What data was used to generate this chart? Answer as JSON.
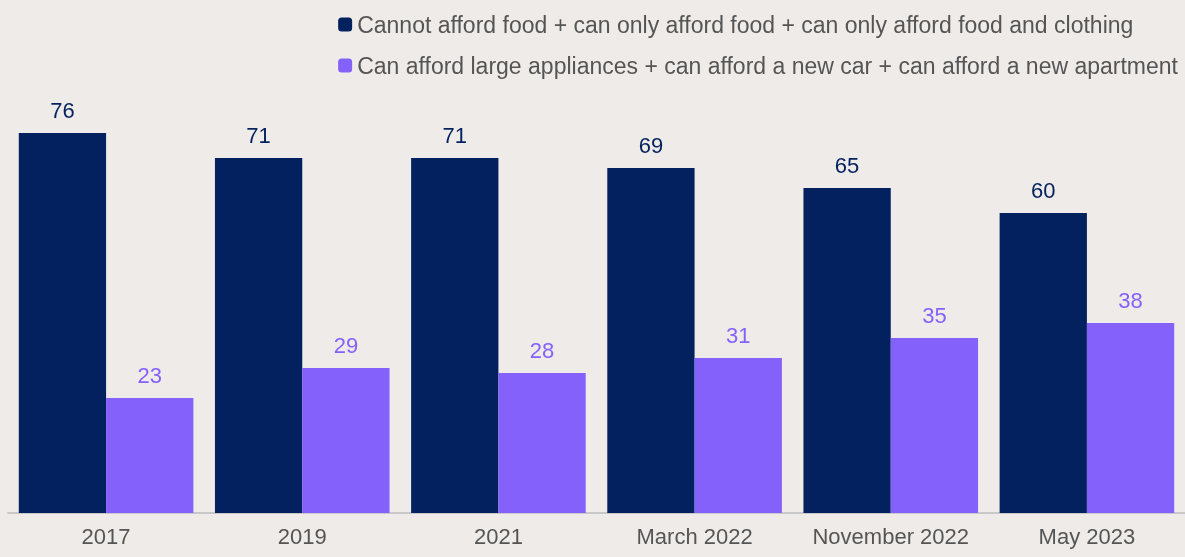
{
  "chart_data": {
    "type": "bar",
    "categories": [
      "2017",
      "2019",
      "2021",
      "March 2022",
      "November 2022",
      "May 2023"
    ],
    "series": [
      {
        "name": "Cannot afford food + can only afford food + can only afford food and clothing",
        "color": "#03215e",
        "values": [
          76,
          71,
          71,
          69,
          65,
          60
        ]
      },
      {
        "name": "Can afford large appliances + can afford a new car + can afford a new apartment",
        "color": "#8461fb",
        "values": [
          23,
          29,
          28,
          31,
          35,
          38
        ]
      }
    ],
    "data_labels": true,
    "legend": "top right"
  }
}
